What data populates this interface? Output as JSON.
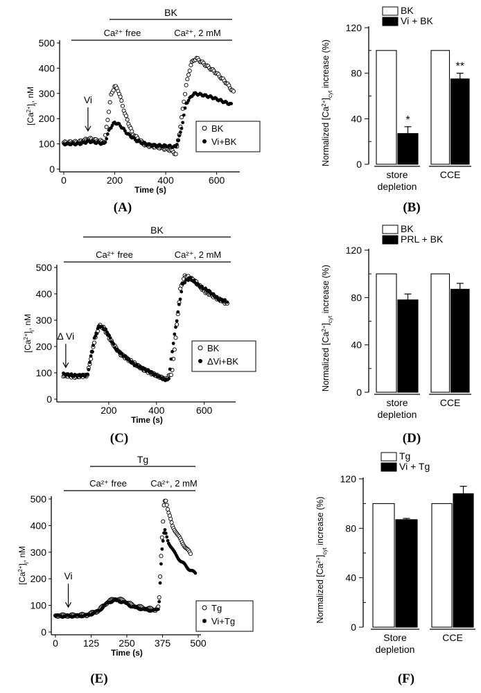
{
  "panel_labels": {
    "A": "(A)",
    "B": "(B)",
    "C": "(C)",
    "D": "(D)",
    "E": "(E)",
    "F": "(F)"
  },
  "chart_data": [
    {
      "id": "A",
      "type": "scatter",
      "xlabel": "Time (s)",
      "ylabel": "[Ca2+]i, nM",
      "xlim": [
        0,
        680
      ],
      "ylim": [
        0,
        500
      ],
      "xticks": [
        0,
        200,
        400,
        600
      ],
      "yticks": [
        0,
        100,
        200,
        300,
        400,
        500
      ],
      "top_labels": {
        "outer": "BK",
        "free": "Ca²⁺ free",
        "ca": "Ca²⁺, 2 mM"
      },
      "arrow": {
        "label": "Vi",
        "x": 95
      },
      "legend": [
        "BK",
        "Vi+BK"
      ],
      "series": [
        {
          "name": "BK",
          "marker": "open",
          "points": [
            [
              0,
              105
            ],
            [
              60,
              108
            ],
            [
              100,
              120
            ],
            [
              160,
              108
            ],
            [
              185,
              290
            ],
            [
              200,
              330
            ],
            [
              215,
              310
            ],
            [
              240,
              220
            ],
            [
              270,
              140
            ],
            [
              320,
              95
            ],
            [
              380,
              85
            ],
            [
              420,
              75
            ],
            [
              440,
              60
            ],
            [
              455,
              150
            ],
            [
              480,
              330
            ],
            [
              500,
              420
            ],
            [
              520,
              440
            ],
            [
              560,
              410
            ],
            [
              600,
              380
            ],
            [
              640,
              340
            ],
            [
              670,
              300
            ]
          ]
        },
        {
          "name": "Vi+BK",
          "marker": "filled",
          "points": [
            [
              0,
              100
            ],
            [
              60,
              100
            ],
            [
              100,
              110
            ],
            [
              160,
              100
            ],
            [
              180,
              160
            ],
            [
              200,
              185
            ],
            [
              220,
              175
            ],
            [
              250,
              140
            ],
            [
              290,
              110
            ],
            [
              340,
              95
            ],
            [
              400,
              92
            ],
            [
              440,
              88
            ],
            [
              460,
              150
            ],
            [
              480,
              260
            ],
            [
              510,
              300
            ],
            [
              540,
              295
            ],
            [
              580,
              285
            ],
            [
              620,
              270
            ],
            [
              660,
              255
            ]
          ]
        }
      ]
    },
    {
      "id": "B",
      "type": "bar",
      "ylabel": "Normalized [Ca2+]cyt increase (%)",
      "ylim": [
        0,
        120
      ],
      "yticks": [
        0,
        40,
        80,
        120
      ],
      "groups": [
        "store\ndepletion",
        "CCE"
      ],
      "series": [
        {
          "name": "BK",
          "fill": "#ffffff",
          "values": [
            100,
            100
          ],
          "errors": [
            0,
            0
          ]
        },
        {
          "name": "Vi + BK",
          "fill": "#000000",
          "values": [
            27,
            75
          ],
          "errors": [
            6,
            5
          ]
        }
      ],
      "significance": [
        "*",
        "**"
      ]
    },
    {
      "id": "C",
      "type": "scatter",
      "xlabel": "Time (s)",
      "ylabel": "[Ca2+]i, nM",
      "xlim": [
        0,
        720
      ],
      "ylim": [
        0,
        500
      ],
      "xticks": [
        200,
        400,
        600
      ],
      "yticks": [
        0,
        100,
        200,
        300,
        400,
        500
      ],
      "top_labels": {
        "outer": "BK",
        "free": "Ca²⁺ free",
        "ca": "Ca²⁺, 2 mM"
      },
      "arrow": {
        "label": "Δ Vi",
        "x": 20
      },
      "legend": [
        "BK",
        "ΔVi+BK"
      ],
      "series": [
        {
          "name": "BK",
          "marker": "open",
          "points": [
            [
              10,
              90
            ],
            [
              60,
              85
            ],
            [
              110,
              90
            ],
            [
              140,
              220
            ],
            [
              160,
              280
            ],
            [
              180,
              270
            ],
            [
              210,
              220
            ],
            [
              250,
              170
            ],
            [
              300,
              140
            ],
            [
              350,
              110
            ],
            [
              400,
              90
            ],
            [
              440,
              75
            ],
            [
              465,
              100
            ],
            [
              480,
              230
            ],
            [
              500,
              420
            ],
            [
              520,
              470
            ],
            [
              560,
              450
            ],
            [
              600,
              410
            ],
            [
              640,
              390
            ],
            [
              700,
              360
            ]
          ]
        },
        {
          "name": "ΔVi+BK",
          "marker": "filled",
          "points": [
            [
              10,
              95
            ],
            [
              60,
              90
            ],
            [
              110,
              90
            ],
            [
              140,
              230
            ],
            [
              160,
              280
            ],
            [
              190,
              260
            ],
            [
              230,
              190
            ],
            [
              270,
              160
            ],
            [
              310,
              130
            ],
            [
              360,
              110
            ],
            [
              410,
              85
            ],
            [
              450,
              70
            ],
            [
              470,
              210
            ],
            [
              490,
              330
            ],
            [
              510,
              440
            ],
            [
              540,
              460
            ],
            [
              580,
              430
            ],
            [
              620,
              410
            ],
            [
              660,
              380
            ],
            [
              700,
              370
            ]
          ]
        }
      ]
    },
    {
      "id": "D",
      "type": "bar",
      "ylabel": "Normalized [Ca2+]cyt increase (%)",
      "ylim": [
        0,
        120
      ],
      "yticks": [
        0,
        40,
        80,
        120
      ],
      "groups": [
        "store\ndepletion",
        "CCE"
      ],
      "series": [
        {
          "name": "BK",
          "fill": "#ffffff",
          "values": [
            100,
            100
          ],
          "errors": [
            0,
            0
          ]
        },
        {
          "name": "PRL + BK",
          "fill": "#000000",
          "values": [
            78,
            87
          ],
          "errors": [
            5,
            5
          ]
        }
      ],
      "significance": [
        "",
        ""
      ]
    },
    {
      "id": "E",
      "type": "scatter",
      "xlabel": "Time (s)",
      "ylabel": "[Ca2+]i, nM",
      "xlim": [
        0,
        500
      ],
      "ylim": [
        0,
        500
      ],
      "xticks": [
        0,
        125,
        250,
        375,
        500
      ],
      "yticks": [
        0,
        100,
        200,
        300,
        400,
        500
      ],
      "top_labels": {
        "outer": "Tg",
        "free": "Ca²⁺ free",
        "ca": "Ca²⁺, 2 mM"
      },
      "arrow": {
        "label": "Vi",
        "x": 45
      },
      "legend": [
        "Tg",
        "Vi+Tg"
      ],
      "series": [
        {
          "name": "Tg",
          "marker": "open",
          "points": [
            [
              0,
              62
            ],
            [
              50,
              62
            ],
            [
              110,
              64
            ],
            [
              150,
              80
            ],
            [
              185,
              115
            ],
            [
              210,
              125
            ],
            [
              240,
              118
            ],
            [
              270,
              100
            ],
            [
              310,
              90
            ],
            [
              350,
              84
            ],
            [
              362,
              95
            ],
            [
              372,
              330
            ],
            [
              380,
              480
            ],
            [
              385,
              505
            ],
            [
              395,
              450
            ],
            [
              410,
              400
            ],
            [
              430,
              360
            ],
            [
              455,
              320
            ],
            [
              475,
              290
            ]
          ]
        },
        {
          "name": "Vi+Tg",
          "marker": "filled",
          "points": [
            [
              0,
              60
            ],
            [
              50,
              60
            ],
            [
              110,
              62
            ],
            [
              150,
              78
            ],
            [
              185,
              112
            ],
            [
              210,
              120
            ],
            [
              240,
              112
            ],
            [
              270,
              95
            ],
            [
              310,
              85
            ],
            [
              350,
              80
            ],
            [
              362,
              90
            ],
            [
              372,
              300
            ],
            [
              382,
              385
            ],
            [
              395,
              340
            ],
            [
              415,
              300
            ],
            [
              440,
              265
            ],
            [
              470,
              235
            ],
            [
              490,
              220
            ]
          ]
        }
      ]
    },
    {
      "id": "F",
      "type": "bar",
      "ylabel": "Normalized [Ca2+]cyt increase (%)",
      "ylim": [
        0,
        120
      ],
      "yticks": [
        0,
        40,
        80,
        120
      ],
      "groups": [
        "Store\ndepletion",
        "CCE"
      ],
      "series": [
        {
          "name": "Tg",
          "fill": "#ffffff",
          "values": [
            100,
            100
          ],
          "errors": [
            0,
            0
          ]
        },
        {
          "name": "Vi + Tg",
          "fill": "#000000",
          "values": [
            87,
            108
          ],
          "errors": [
            1,
            6
          ]
        }
      ],
      "significance": [
        "",
        ""
      ]
    }
  ]
}
